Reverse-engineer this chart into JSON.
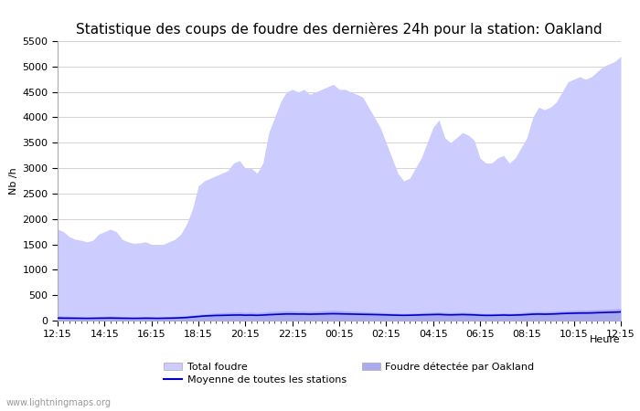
{
  "title": "Statistique des coups de foudre des dernières 24h pour la station: Oakland",
  "ylabel": "Nb /h",
  "xlabel_right": "Heure",
  "watermark": "www.lightningmaps.org",
  "ylim": [
    0,
    5500
  ],
  "yticks": [
    0,
    500,
    1000,
    1500,
    2000,
    2500,
    3000,
    3500,
    4000,
    4500,
    5000,
    5500
  ],
  "xtick_labels": [
    "12:15",
    "14:15",
    "16:15",
    "18:15",
    "20:15",
    "22:15",
    "00:15",
    "02:15",
    "04:15",
    "06:15",
    "08:15",
    "10:15",
    "12:15"
  ],
  "background_color": "#ffffff",
  "plot_bg_color": "#ffffff",
  "grid_color": "#cccccc",
  "fill_total_color": "#ccccff",
  "fill_oakland_color": "#aaaaee",
  "line_avg_color": "#0000cc",
  "legend_total": "Total foudre",
  "legend_avg": "Moyenne de toutes les stations",
  "legend_oakland": "Foudre détectée par Oakland",
  "title_fontsize": 11,
  "axis_fontsize": 8,
  "n_points": 97,
  "total_foudre": [
    1800,
    1750,
    1650,
    1600,
    1580,
    1550,
    1580,
    1700,
    1750,
    1800,
    1750,
    1600,
    1550,
    1520,
    1530,
    1550,
    1500,
    1480,
    1500,
    1550,
    1600,
    1700,
    1900,
    2200,
    2650,
    2750,
    2800,
    2850,
    2900,
    2950,
    3100,
    3150,
    3000,
    3000,
    2900,
    3100,
    3700,
    4000,
    4300,
    4500,
    4550,
    4500,
    4550,
    4450,
    4500,
    4550,
    4600,
    4650,
    4550,
    4550,
    4500,
    4450,
    4400,
    4200,
    4000,
    3800,
    3500,
    3200,
    2900,
    2750,
    2800,
    3000,
    3200,
    3500,
    3800,
    3950,
    3600,
    3500,
    3600,
    3700,
    3650,
    3550,
    3200,
    3100,
    3100,
    3200,
    3250,
    3100,
    3200,
    3400,
    3600,
    4000,
    4200,
    4150,
    4200,
    4300,
    4500,
    4700,
    4750,
    4800,
    4750,
    4800,
    4900,
    5000,
    5050,
    5100,
    5200
  ],
  "foudre_oakland": [
    100,
    90,
    85,
    80,
    75,
    70,
    75,
    80,
    85,
    90,
    85,
    80,
    75,
    70,
    75,
    80,
    75,
    70,
    75,
    80,
    85,
    90,
    100,
    110,
    120,
    130,
    140,
    150,
    155,
    160,
    165,
    170,
    160,
    165,
    155,
    165,
    175,
    180,
    185,
    190,
    190,
    185,
    185,
    180,
    185,
    190,
    195,
    200,
    195,
    190,
    185,
    180,
    175,
    170,
    165,
    160,
    155,
    150,
    145,
    140,
    145,
    150,
    155,
    160,
    165,
    170,
    160,
    155,
    160,
    165,
    160,
    155,
    145,
    140,
    140,
    145,
    150,
    145,
    150,
    155,
    165,
    175,
    180,
    175,
    180,
    185,
    190,
    195,
    200,
    205,
    205,
    210,
    215,
    220,
    225,
    230,
    235
  ],
  "avg_line": [
    50,
    48,
    47,
    46,
    45,
    44,
    45,
    47,
    48,
    50,
    48,
    46,
    45,
    44,
    45,
    47,
    46,
    44,
    46,
    48,
    50,
    55,
    60,
    70,
    80,
    90,
    95,
    100,
    102,
    105,
    108,
    110,
    105,
    107,
    103,
    108,
    115,
    120,
    125,
    130,
    130,
    128,
    128,
    125,
    128,
    130,
    133,
    135,
    133,
    130,
    128,
    125,
    122,
    120,
    118,
    115,
    112,
    108,
    105,
    103,
    105,
    108,
    112,
    115,
    118,
    120,
    115,
    112,
    115,
    118,
    115,
    112,
    105,
    102,
    102,
    105,
    108,
    105,
    108,
    112,
    118,
    125,
    128,
    125,
    128,
    132,
    138,
    142,
    145,
    148,
    148,
    150,
    155,
    158,
    162,
    165,
    170
  ]
}
